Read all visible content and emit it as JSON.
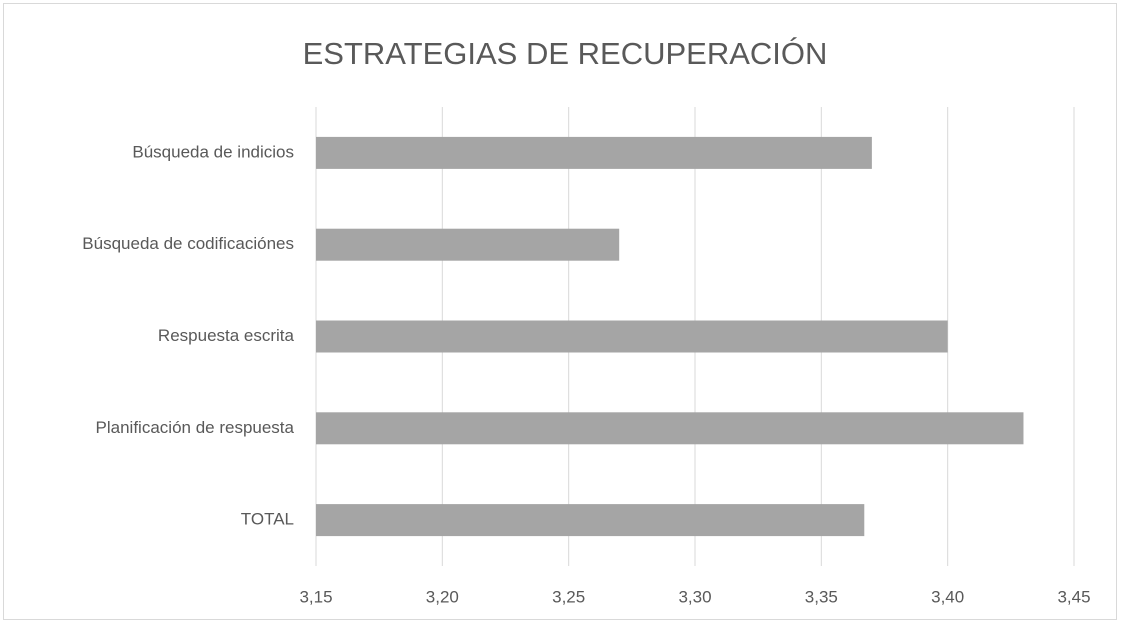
{
  "chart_data": {
    "type": "bar",
    "orientation": "horizontal",
    "title": "ESTRATEGIAS DE RECUPERACIÓN",
    "categories": [
      "Búsqueda de indicios",
      "Búsqueda de codificaciónes",
      "Respuesta escrita",
      "Planificación de respuesta",
      "TOTAL"
    ],
    "values": [
      3.37,
      3.27,
      3.4,
      3.43,
      3.367
    ],
    "color": "#a5a5a5",
    "xlim": [
      3.15,
      3.45
    ],
    "xticks": [
      {
        "value": 3.15,
        "label": "3,15"
      },
      {
        "value": 3.2,
        "label": "3,20"
      },
      {
        "value": 3.25,
        "label": "3,25"
      },
      {
        "value": 3.3,
        "label": "3,30"
      },
      {
        "value": 3.35,
        "label": "3,35"
      },
      {
        "value": 3.4,
        "label": "3,40"
      },
      {
        "value": 3.45,
        "label": "3,45"
      }
    ],
    "grid": true
  }
}
